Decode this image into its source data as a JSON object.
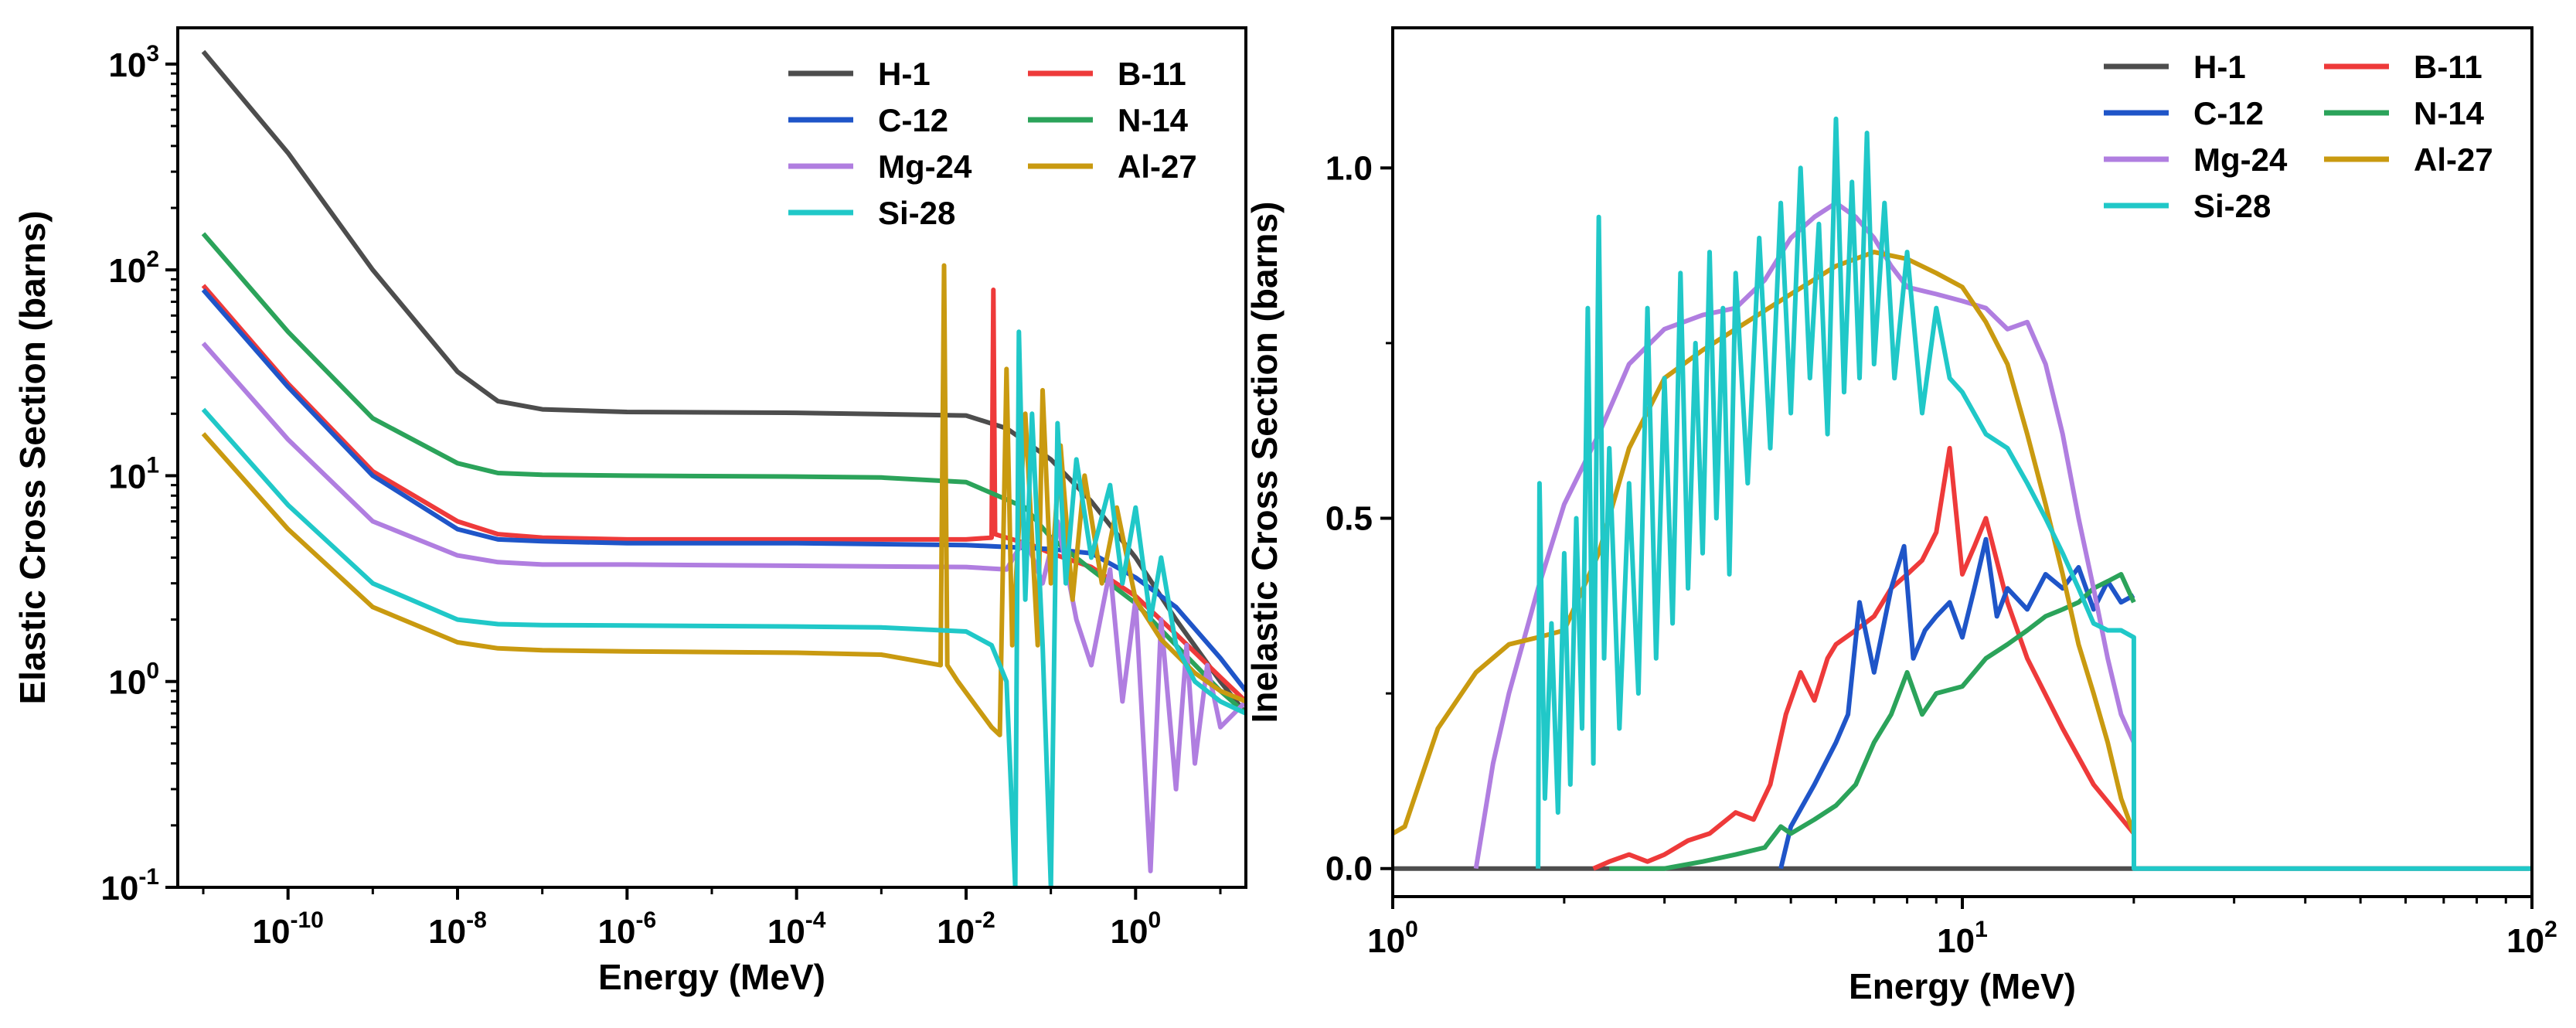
{
  "chart_data": [
    {
      "type": "line",
      "panel": "left",
      "xscale": "log",
      "yscale": "log",
      "xlabel": "Energy (MeV)",
      "ylabel": "Elastic Cross Section (barns)",
      "xlim": [
        5e-12,
        20
      ],
      "ylim": [
        0.1,
        1500
      ],
      "xticks": [
        {
          "value": 1e-10,
          "base": "10",
          "exp": "-10"
        },
        {
          "value": 1e-08,
          "base": "10",
          "exp": "-8"
        },
        {
          "value": 1e-06,
          "base": "10",
          "exp": "-6"
        },
        {
          "value": 0.0001,
          "base": "10",
          "exp": "-4"
        },
        {
          "value": 0.01,
          "base": "10",
          "exp": "-2"
        },
        {
          "value": 1,
          "base": "10",
          "exp": "0"
        }
      ],
      "yticks": [
        {
          "value": 0.1,
          "base": "10",
          "exp": "-1"
        },
        {
          "value": 1,
          "base": "10",
          "exp": "0"
        },
        {
          "value": 10,
          "base": "10",
          "exp": "1"
        },
        {
          "value": 100,
          "base": "10",
          "exp": "2"
        },
        {
          "value": 1000,
          "base": "10",
          "exp": "3"
        }
      ],
      "legend_position": "top-right",
      "series": [
        {
          "name": "H-1",
          "color": "#4d4d4d",
          "x": [
            1e-11,
            1e-10,
            1e-09,
            1e-08,
            3e-08,
            1e-07,
            1e-06,
            0.0001,
            0.01,
            0.03,
            0.1,
            0.3,
            1,
            3,
            10,
            20
          ],
          "y": [
            1150,
            370,
            100,
            32,
            23,
            21,
            20.4,
            20.2,
            19.6,
            17,
            12,
            7.5,
            4,
            2,
            1.0,
            0.7
          ]
        },
        {
          "name": "B-11",
          "color": "#ee3a3a",
          "x": [
            1e-11,
            1e-10,
            1e-09,
            1e-08,
            3e-08,
            1e-07,
            1e-06,
            0.0001,
            0.01,
            0.02,
            0.021,
            0.022,
            0.03,
            0.06,
            0.1,
            0.3,
            1,
            3,
            10,
            20
          ],
          "y": [
            84,
            28,
            10.5,
            6,
            5.2,
            5.0,
            4.9,
            4.9,
            4.9,
            5.0,
            80,
            5.2,
            5.0,
            4.6,
            4.2,
            3.6,
            2.6,
            1.7,
            1.05,
            0.8
          ]
        },
        {
          "name": "C-12",
          "color": "#1f55c8",
          "x": [
            1e-11,
            1e-10,
            1e-09,
            1e-08,
            3e-08,
            1e-07,
            1e-06,
            0.0001,
            0.01,
            0.1,
            0.3,
            1,
            3,
            10,
            20
          ],
          "y": [
            80,
            27,
            10,
            5.5,
            4.9,
            4.8,
            4.7,
            4.7,
            4.6,
            4.4,
            4.2,
            3.2,
            2.3,
            1.3,
            0.9
          ]
        },
        {
          "name": "N-14",
          "color": "#2ba35a",
          "x": [
            1e-11,
            1e-10,
            1e-09,
            1e-08,
            3e-08,
            1e-07,
            1e-06,
            0.0001,
            0.001,
            0.01,
            0.05,
            0.1,
            0.3,
            1,
            3,
            10,
            20
          ],
          "y": [
            150,
            50,
            19,
            11.5,
            10.3,
            10.1,
            10.0,
            9.9,
            9.8,
            9.3,
            7,
            5,
            3.5,
            2.4,
            1.5,
            0.9,
            0.7
          ]
        },
        {
          "name": "Mg-24",
          "color": "#b07ee0",
          "x": [
            1e-11,
            1e-10,
            1e-09,
            1e-08,
            3e-08,
            1e-07,
            1e-06,
            0.0001,
            0.01,
            0.03,
            0.05,
            0.08,
            0.12,
            0.2,
            0.3,
            0.5,
            0.7,
            1,
            1.5,
            2,
            3,
            4,
            5,
            7,
            10,
            20
          ],
          "y": [
            44,
            15,
            6,
            4.1,
            3.8,
            3.7,
            3.7,
            3.65,
            3.6,
            3.5,
            5,
            3.0,
            6,
            2.0,
            1.2,
            3.5,
            0.8,
            2.5,
            0.12,
            2.0,
            0.3,
            1.5,
            0.4,
            1.2,
            0.6,
            0.8
          ]
        },
        {
          "name": "Al-27",
          "color": "#c99a10",
          "x": [
            1e-11,
            1e-10,
            1e-09,
            1e-08,
            3e-08,
            1e-07,
            1e-06,
            0.0001,
            0.001,
            0.005,
            0.0055,
            0.006,
            0.008,
            0.02,
            0.025,
            0.03,
            0.035,
            0.05,
            0.07,
            0.08,
            0.1,
            0.13,
            0.18,
            0.25,
            0.4,
            0.6,
            1,
            2,
            5,
            10,
            20
          ],
          "y": [
            16,
            5.5,
            2.3,
            1.55,
            1.45,
            1.42,
            1.4,
            1.38,
            1.35,
            1.2,
            105,
            1.2,
            1.0,
            0.6,
            0.55,
            33,
            1.5,
            20,
            1.5,
            26,
            3,
            14,
            2.5,
            10,
            3,
            7,
            2.5,
            1.6,
            1.1,
            0.9,
            0.8
          ]
        },
        {
          "name": "Si-28",
          "color": "#20c8c8",
          "x": [
            1e-11,
            1e-10,
            1e-09,
            1e-08,
            3e-08,
            1e-07,
            1e-06,
            0.0001,
            0.001,
            0.01,
            0.02,
            0.03,
            0.038,
            0.042,
            0.05,
            0.06,
            0.08,
            0.1,
            0.12,
            0.15,
            0.2,
            0.3,
            0.5,
            0.7,
            1,
            1.5,
            2,
            3,
            5,
            10,
            20
          ],
          "y": [
            21,
            7.2,
            3.0,
            2.0,
            1.9,
            1.88,
            1.87,
            1.85,
            1.83,
            1.75,
            1.5,
            1.0,
            0.1,
            50,
            2.5,
            20,
            1.5,
            0.1,
            18,
            3,
            12,
            4,
            9,
            3,
            7,
            2,
            4,
            1.5,
            1.0,
            0.8,
            0.7
          ]
        }
      ]
    },
    {
      "type": "line",
      "panel": "right",
      "xscale": "log",
      "yscale": "linear",
      "xlabel": "Energy (MeV)",
      "ylabel": "Inelastic Cross Section (barns)",
      "xlim": [
        1,
        100
      ],
      "ylim": [
        -0.04,
        1.2
      ],
      "xticks": [
        {
          "value": 1,
          "base": "10",
          "exp": "0"
        },
        {
          "value": 10,
          "base": "10",
          "exp": "1"
        },
        {
          "value": 100,
          "base": "10",
          "exp": "2"
        }
      ],
      "yticks": [
        {
          "value": 0.0,
          "label": "0.0"
        },
        {
          "value": 0.5,
          "label": "0.5"
        },
        {
          "value": 1.0,
          "label": "1.0"
        }
      ],
      "legend_position": "top-right",
      "series": [
        {
          "name": "H-1",
          "color": "#4d4d4d",
          "x": [
            1,
            100
          ],
          "y": [
            0,
            0
          ]
        },
        {
          "name": "B-11",
          "color": "#ee3a3a",
          "x": [
            2.25,
            2.4,
            2.6,
            2.8,
            3.0,
            3.3,
            3.6,
            4.0,
            4.3,
            4.6,
            4.9,
            5.2,
            5.5,
            5.8,
            6.0,
            6.5,
            7.0,
            7.5,
            8.0,
            8.5,
            9.0,
            9.5,
            10.0,
            10.5,
            11.0,
            12.0,
            13.0,
            15.0,
            17.0,
            20.0
          ],
          "y": [
            0.0,
            0.01,
            0.02,
            0.01,
            0.02,
            0.04,
            0.05,
            0.08,
            0.07,
            0.12,
            0.22,
            0.28,
            0.24,
            0.3,
            0.32,
            0.34,
            0.36,
            0.4,
            0.42,
            0.44,
            0.48,
            0.6,
            0.42,
            0.46,
            0.5,
            0.38,
            0.3,
            0.2,
            0.12,
            0.05
          ]
        },
        {
          "name": "C-12",
          "color": "#1f55c8",
          "x": [
            4.8,
            5.0,
            5.5,
            6.0,
            6.3,
            6.6,
            7.0,
            7.5,
            7.9,
            8.2,
            8.6,
            9.0,
            9.5,
            10.0,
            10.5,
            11.0,
            11.5,
            12.0,
            13.0,
            14.0,
            15.0,
            16.0,
            17.0,
            18.0,
            19.0,
            20.0
          ],
          "y": [
            0.0,
            0.06,
            0.12,
            0.18,
            0.22,
            0.38,
            0.28,
            0.4,
            0.46,
            0.3,
            0.34,
            0.36,
            0.38,
            0.33,
            0.4,
            0.47,
            0.36,
            0.4,
            0.37,
            0.42,
            0.4,
            0.43,
            0.37,
            0.41,
            0.38,
            0.39
          ]
        },
        {
          "name": "N-14",
          "color": "#2ba35a",
          "x": [
            2.4,
            3.0,
            3.5,
            4.0,
            4.5,
            4.8,
            5.0,
            5.5,
            6.0,
            6.5,
            7.0,
            7.5,
            8.0,
            8.5,
            9.0,
            10.0,
            11.0,
            12.0,
            13.0,
            14.0,
            15.0,
            16.0,
            17.0,
            18.0,
            19.0,
            20.0
          ],
          "y": [
            0.0,
            0.0,
            0.01,
            0.02,
            0.03,
            0.06,
            0.05,
            0.07,
            0.09,
            0.12,
            0.18,
            0.22,
            0.28,
            0.22,
            0.25,
            0.26,
            0.3,
            0.32,
            0.34,
            0.36,
            0.37,
            0.38,
            0.4,
            0.41,
            0.42,
            0.38
          ]
        },
        {
          "name": "Mg-24",
          "color": "#b07ee0",
          "x": [
            1.4,
            1.5,
            1.6,
            1.8,
            2.0,
            2.3,
            2.6,
            3.0,
            3.5,
            4.0,
            4.5,
            5.0,
            5.5,
            6.0,
            6.5,
            7.0,
            7.5,
            8.0,
            9.0,
            10.0,
            11.0,
            12.0,
            13.0,
            14.0,
            15.0,
            16.0,
            17.0,
            18.0,
            19.0,
            20.0
          ],
          "y": [
            0.0,
            0.15,
            0.25,
            0.4,
            0.52,
            0.62,
            0.72,
            0.77,
            0.79,
            0.8,
            0.84,
            0.9,
            0.93,
            0.95,
            0.93,
            0.9,
            0.86,
            0.83,
            0.82,
            0.81,
            0.8,
            0.77,
            0.78,
            0.72,
            0.62,
            0.5,
            0.4,
            0.3,
            0.22,
            0.18
          ]
        },
        {
          "name": "Al-27",
          "color": "#c99a10",
          "x": [
            1.0,
            1.05,
            1.2,
            1.4,
            1.6,
            1.8,
            2.0,
            2.3,
            2.6,
            3.0,
            3.5,
            4.0,
            5.0,
            6.0,
            7.0,
            8.0,
            9.0,
            10.0,
            11.0,
            12.0,
            13.0,
            14.0,
            15.0,
            16.0,
            17.0,
            18.0,
            19.0,
            20.0
          ],
          "y": [
            0.05,
            0.06,
            0.2,
            0.28,
            0.32,
            0.33,
            0.34,
            0.45,
            0.6,
            0.7,
            0.74,
            0.77,
            0.82,
            0.86,
            0.88,
            0.87,
            0.85,
            0.83,
            0.78,
            0.72,
            0.62,
            0.52,
            0.42,
            0.32,
            0.25,
            0.18,
            0.1,
            0.05
          ]
        },
        {
          "name": "Si-28",
          "color": "#20c8c8",
          "x": [
            1.8,
            1.81,
            1.85,
            1.9,
            1.95,
            2.0,
            2.05,
            2.1,
            2.15,
            2.2,
            2.25,
            2.3,
            2.35,
            2.4,
            2.5,
            2.6,
            2.7,
            2.8,
            2.9,
            3.0,
            3.1,
            3.2,
            3.3,
            3.4,
            3.5,
            3.6,
            3.7,
            3.8,
            3.9,
            4.0,
            4.2,
            4.4,
            4.6,
            4.8,
            5.0,
            5.2,
            5.4,
            5.6,
            5.8,
            6.0,
            6.2,
            6.4,
            6.6,
            6.8,
            7.0,
            7.3,
            7.6,
            8.0,
            8.5,
            9.0,
            9.5,
            10.0,
            11.0,
            12.0,
            13.0,
            14.0,
            15.0,
            16.0,
            17.0,
            18.0,
            19.0,
            20.0,
            20.01,
            100
          ],
          "y": [
            0.0,
            0.55,
            0.1,
            0.35,
            0.08,
            0.45,
            0.12,
            0.5,
            0.2,
            0.8,
            0.15,
            0.93,
            0.3,
            0.6,
            0.2,
            0.55,
            0.25,
            0.8,
            0.3,
            0.7,
            0.35,
            0.85,
            0.4,
            0.75,
            0.45,
            0.88,
            0.5,
            0.8,
            0.42,
            0.85,
            0.55,
            0.9,
            0.6,
            0.95,
            0.65,
            1.0,
            0.7,
            0.92,
            0.62,
            1.07,
            0.68,
            0.98,
            0.7,
            1.05,
            0.72,
            0.95,
            0.7,
            0.88,
            0.65,
            0.8,
            0.7,
            0.68,
            0.62,
            0.6,
            0.55,
            0.5,
            0.45,
            0.4,
            0.35,
            0.34,
            0.34,
            0.33,
            0.0,
            0.0
          ]
        }
      ]
    }
  ]
}
